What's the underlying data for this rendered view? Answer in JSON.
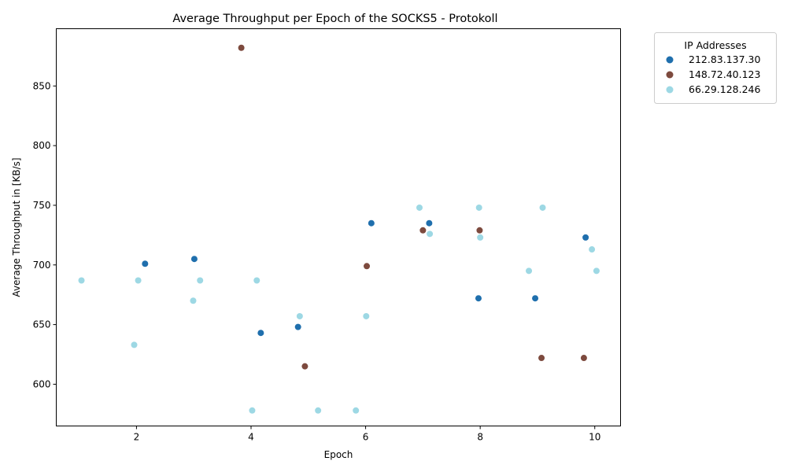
{
  "chart_data": {
    "type": "scatter",
    "title": "Average Throughput per Epoch of the SOCKS5 - Protokoll",
    "xlabel": "Epoch",
    "ylabel": "Average Throughput in [KB/s]",
    "xlim": [
      0.6,
      10.45
    ],
    "ylim": [
      565,
      898
    ],
    "xticks": [
      2,
      4,
      6,
      8,
      10
    ],
    "yticks": [
      600,
      650,
      700,
      750,
      800,
      850
    ],
    "grid": false,
    "legend": {
      "title": "IP Addresses",
      "placement": "outside-top-right"
    },
    "series": [
      {
        "name": "212.83.137.30",
        "color": "#1f6fad",
        "points": [
          {
            "x": 2.15,
            "y": 701
          },
          {
            "x": 3.01,
            "y": 705
          },
          {
            "x": 4.17,
            "y": 643
          },
          {
            "x": 4.82,
            "y": 648
          },
          {
            "x": 6.1,
            "y": 735
          },
          {
            "x": 7.11,
            "y": 735
          },
          {
            "x": 7.97,
            "y": 672
          },
          {
            "x": 8.96,
            "y": 672
          },
          {
            "x": 9.84,
            "y": 723
          }
        ]
      },
      {
        "name": "148.72.40.123",
        "color": "#7d4a3e",
        "points": [
          {
            "x": 3.83,
            "y": 882
          },
          {
            "x": 4.94,
            "y": 615
          },
          {
            "x": 6.02,
            "y": 699
          },
          {
            "x": 7.0,
            "y": 729
          },
          {
            "x": 7.99,
            "y": 729
          },
          {
            "x": 9.07,
            "y": 622
          },
          {
            "x": 9.81,
            "y": 622
          }
        ]
      },
      {
        "name": "66.29.128.246",
        "color": "#9dd8e4",
        "points": [
          {
            "x": 1.04,
            "y": 687
          },
          {
            "x": 1.96,
            "y": 633
          },
          {
            "x": 2.03,
            "y": 687
          },
          {
            "x": 2.99,
            "y": 670
          },
          {
            "x": 3.11,
            "y": 687
          },
          {
            "x": 4.02,
            "y": 578
          },
          {
            "x": 4.1,
            "y": 687
          },
          {
            "x": 4.85,
            "y": 657
          },
          {
            "x": 5.17,
            "y": 578
          },
          {
            "x": 5.83,
            "y": 578
          },
          {
            "x": 6.01,
            "y": 657
          },
          {
            "x": 6.94,
            "y": 748
          },
          {
            "x": 7.12,
            "y": 726
          },
          {
            "x": 7.98,
            "y": 748
          },
          {
            "x": 8.0,
            "y": 723
          },
          {
            "x": 8.85,
            "y": 695
          },
          {
            "x": 9.09,
            "y": 748
          },
          {
            "x": 9.95,
            "y": 713
          },
          {
            "x": 10.03,
            "y": 695
          }
        ]
      }
    ]
  }
}
